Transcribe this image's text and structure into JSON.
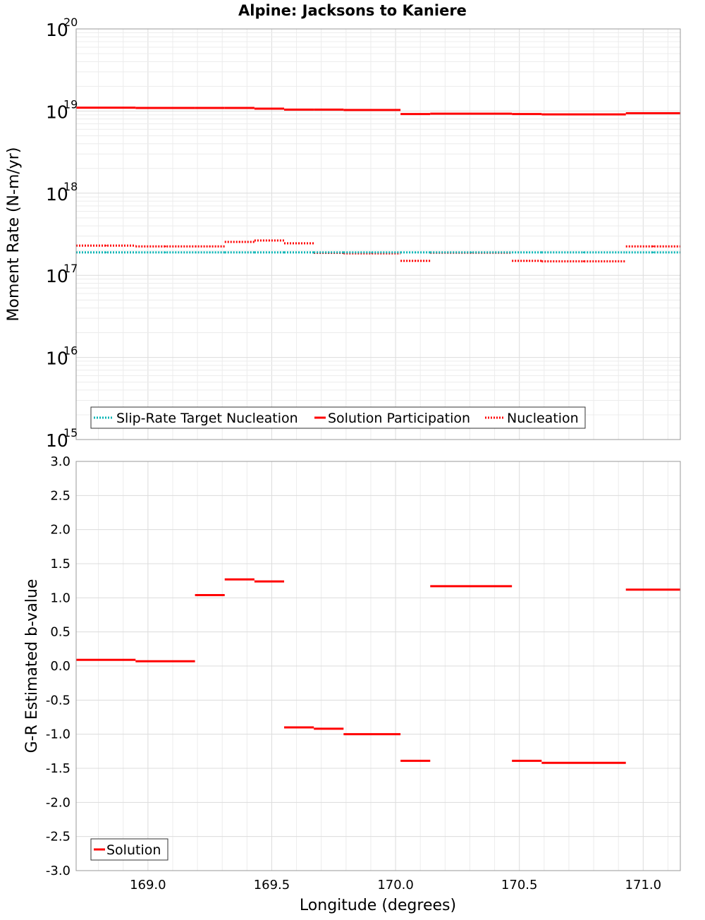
{
  "title": "Alpine: Jacksons to Kaniere",
  "colors": {
    "solution": "#ff0000",
    "nucleation": "#ff0000",
    "target": "#00b4b4",
    "grid_minor": "#ececec",
    "grid_major": "#dcdcdc",
    "frame": "#999999"
  },
  "x_axis": {
    "label": "Longitude (degrees)",
    "range": [
      168.71,
      171.15
    ],
    "ticks": [
      169.0,
      169.5,
      170.0,
      170.5,
      171.0
    ],
    "tick_labels": [
      "169.0",
      "169.5",
      "170.0",
      "170.5",
      "171.0"
    ]
  },
  "top_plot": {
    "ylabel": "Moment Rate (N-m/yr)",
    "scale": "log",
    "ylim": [
      1000000000000000.0,
      1e+20
    ],
    "y_tick_exponents": [
      "20",
      "19",
      "18",
      "17",
      "16",
      "15"
    ],
    "y_tick_base": "10",
    "legend": {
      "position": "bottom-left",
      "items": [
        "Slip-Rate Target Nucleation",
        "Solution Participation",
        "Nucleation"
      ]
    }
  },
  "bottom_plot": {
    "ylabel": "G-R Estimated b-value",
    "ylim": [
      -3.0,
      3.0
    ],
    "y_ticks": [
      3.0,
      2.5,
      2.0,
      1.5,
      1.0,
      0.5,
      0.0,
      -0.5,
      -1.0,
      -1.5,
      -2.0,
      -2.5,
      -3.0
    ],
    "y_tick_labels": [
      "3.0",
      "2.5",
      "2.0",
      "1.5",
      "1.0",
      "0.5",
      "0.0",
      "-0.5",
      "-1.0",
      "-1.5",
      "-2.0",
      "-2.5",
      "-3.0"
    ],
    "legend": {
      "position": "bottom-left",
      "items": [
        "Solution"
      ]
    }
  },
  "chart_data": [
    {
      "type": "line",
      "title": "Alpine: Jacksons to Kaniere",
      "xlabel": "Longitude (degrees)",
      "ylabel": "Moment Rate (N-m/yr)",
      "yscale": "log",
      "xlim": [
        168.71,
        171.15
      ],
      "ylim": [
        1000000000000000.0,
        1e+20
      ],
      "grid": true,
      "legend_placement": "bottom-left",
      "segments": [
        {
          "x0": 168.71,
          "x1": 168.95
        },
        {
          "x0": 168.95,
          "x1": 169.19
        },
        {
          "x0": 169.19,
          "x1": 169.31
        },
        {
          "x0": 169.31,
          "x1": 169.43
        },
        {
          "x0": 169.43,
          "x1": 169.55
        },
        {
          "x0": 169.55,
          "x1": 169.67
        },
        {
          "x0": 169.67,
          "x1": 169.79
        },
        {
          "x0": 169.79,
          "x1": 170.02
        },
        {
          "x0": 170.02,
          "x1": 170.14
        },
        {
          "x0": 170.14,
          "x1": 170.47
        },
        {
          "x0": 170.47,
          "x1": 170.59
        },
        {
          "x0": 170.59,
          "x1": 170.93
        },
        {
          "x0": 170.93,
          "x1": 171.15
        }
      ],
      "series": [
        {
          "name": "Slip-Rate Target Nucleation",
          "style": "dotted",
          "values": [
            1.9e+17,
            1.9e+17,
            1.9e+17,
            1.9e+17,
            1.9e+17,
            1.9e+17,
            1.9e+17,
            1.9e+17,
            1.9e+17,
            1.9e+17,
            1.9e+17,
            1.9e+17,
            1.9e+17
          ]
        },
        {
          "name": "Solution Participation",
          "style": "solid",
          "values": [
            1.1e+19,
            1.09e+19,
            1.09e+19,
            1.09e+19,
            1.07e+19,
            1.04e+19,
            1.04e+19,
            1.03e+19,
            9.2e+18,
            9.3e+18,
            9.2e+18,
            9.1e+18,
            9.4e+18
          ]
        },
        {
          "name": "Nucleation",
          "style": "dotted",
          "values": [
            2.3e+17,
            2.25e+17,
            2.25e+17,
            2.55e+17,
            2.65e+17,
            2.45e+17,
            1.87e+17,
            1.85e+17,
            1.5e+17,
            1.88e+17,
            1.5e+17,
            1.48e+17,
            2.25e+17
          ]
        }
      ]
    },
    {
      "type": "line",
      "xlabel": "Longitude (degrees)",
      "ylabel": "G-R Estimated b-value",
      "xlim": [
        168.71,
        171.15
      ],
      "ylim": [
        -3.0,
        3.0
      ],
      "grid": true,
      "legend_placement": "bottom-left",
      "segments": [
        {
          "x0": 168.71,
          "x1": 168.95
        },
        {
          "x0": 168.95,
          "x1": 169.19
        },
        {
          "x0": 169.19,
          "x1": 169.31
        },
        {
          "x0": 169.31,
          "x1": 169.43
        },
        {
          "x0": 169.43,
          "x1": 169.55
        },
        {
          "x0": 169.55,
          "x1": 169.67
        },
        {
          "x0": 169.67,
          "x1": 169.79
        },
        {
          "x0": 169.79,
          "x1": 170.02
        },
        {
          "x0": 170.02,
          "x1": 170.14
        },
        {
          "x0": 170.14,
          "x1": 170.47
        },
        {
          "x0": 170.47,
          "x1": 170.59
        },
        {
          "x0": 170.59,
          "x1": 170.93
        },
        {
          "x0": 170.93,
          "x1": 171.15
        }
      ],
      "series": [
        {
          "name": "Solution",
          "style": "solid",
          "values": [
            0.09,
            0.07,
            1.04,
            1.27,
            1.24,
            -0.9,
            -0.92,
            -1.0,
            -1.39,
            1.17,
            -1.39,
            -1.42,
            1.12
          ]
        }
      ]
    }
  ]
}
